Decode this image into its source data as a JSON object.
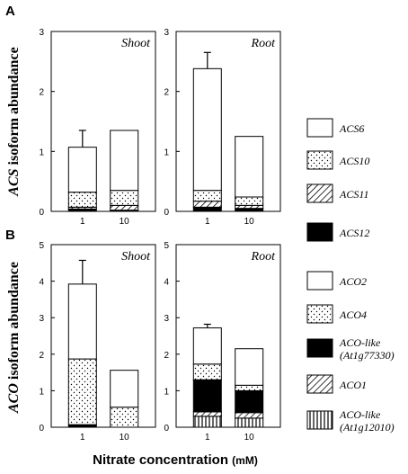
{
  "figure": {
    "xlabel_main": "Nitrate concentration",
    "xlabel_unit": "(mM)"
  },
  "chart_data": [
    {
      "type": "bar",
      "stacked": true,
      "panel": "A",
      "ylabel_italic": "ACS",
      "ylabel_rest": "isoform abundance",
      "ylim": [
        0,
        3
      ],
      "yticks": [
        "0",
        "1",
        "2",
        "3"
      ],
      "categories": [
        "1",
        "10"
      ],
      "facets": [
        {
          "title": "Shoot",
          "series": [
            {
              "name": "ACS12",
              "values": [
                0.04,
                0.02
              ],
              "err": [
                0,
                0
              ]
            },
            {
              "name": "ACS11",
              "values": [
                0.03,
                0.08
              ],
              "err": [
                0,
                0
              ]
            },
            {
              "name": "ACS10",
              "values": [
                0.25,
                0.25
              ],
              "err": [
                0.16,
                0.09
              ]
            },
            {
              "name": "ACS6",
              "values": [
                0.75,
                1.0
              ],
              "err": [
                0.28,
                0
              ]
            }
          ]
        },
        {
          "title": "Root",
          "series": [
            {
              "name": "ACS12",
              "values": [
                0.07,
                0.05
              ],
              "err": [
                0,
                0
              ]
            },
            {
              "name": "ACS11",
              "values": [
                0.1,
                0.05
              ],
              "err": [
                0,
                0
              ]
            },
            {
              "name": "ACS10",
              "values": [
                0.18,
                0.14
              ],
              "err": [
                0.18,
                0.1
              ]
            },
            {
              "name": "ACS6",
              "values": [
                2.03,
                1.01
              ],
              "err": [
                0.27,
                0
              ]
            }
          ]
        }
      ],
      "legend": [
        {
          "name": "ACS6",
          "pattern": "white"
        },
        {
          "name": "ACS10",
          "pattern": "dots"
        },
        {
          "name": "ACS11",
          "pattern": "diag"
        },
        {
          "name": "ACS12",
          "pattern": "black"
        }
      ]
    },
    {
      "type": "bar",
      "stacked": true,
      "panel": "B",
      "ylabel_italic": "ACO",
      "ylabel_rest": "isoform abundance",
      "ylim": [
        0,
        5
      ],
      "yticks": [
        "0",
        "1",
        "2",
        "3",
        "4",
        "5"
      ],
      "categories": [
        "1",
        "10"
      ],
      "facets": [
        {
          "title": "Shoot",
          "series": [
            {
              "name": "ACO-like (At1g12010)",
              "values": [
                0,
                0
              ],
              "err": [
                0,
                0
              ]
            },
            {
              "name": "ACO1",
              "values": [
                0,
                0
              ],
              "err": [
                0,
                0
              ]
            },
            {
              "name": "ACO-like (At1g77330)",
              "values": [
                0.07,
                0
              ],
              "err": [
                0,
                0
              ]
            },
            {
              "name": "ACO4",
              "values": [
                1.8,
                0.55
              ],
              "err": [
                0.58,
                0.05
              ]
            },
            {
              "name": "ACO2",
              "values": [
                2.05,
                1.01
              ],
              "err": [
                0.65,
                0
              ]
            }
          ]
        },
        {
          "title": "Root",
          "series": [
            {
              "name": "ACO-like (At1g12010)",
              "values": [
                0.3,
                0.25
              ],
              "err": [
                0,
                0
              ]
            },
            {
              "name": "ACO1",
              "values": [
                0.12,
                0.15
              ],
              "err": [
                0,
                0
              ]
            },
            {
              "name": "ACO-like (At1g77330)",
              "values": [
                0.88,
                0.6
              ],
              "err": [
                0,
                0
              ]
            },
            {
              "name": "ACO4",
              "values": [
                0.43,
                0.15
              ],
              "err": [
                0.05,
                0.05
              ]
            },
            {
              "name": "ACO2",
              "values": [
                0.99,
                1.0
              ],
              "err": [
                0.1,
                0
              ]
            }
          ]
        }
      ],
      "legend": [
        {
          "name": "ACO2",
          "pattern": "white"
        },
        {
          "name": "ACO4",
          "pattern": "dots"
        },
        {
          "name": "ACO-like",
          "name2": "(At1g77330)",
          "pattern": "black"
        },
        {
          "name": "ACO1",
          "pattern": "diag"
        },
        {
          "name": "ACO-like",
          "name2": "(At1g12010)",
          "pattern": "vert"
        }
      ]
    }
  ]
}
